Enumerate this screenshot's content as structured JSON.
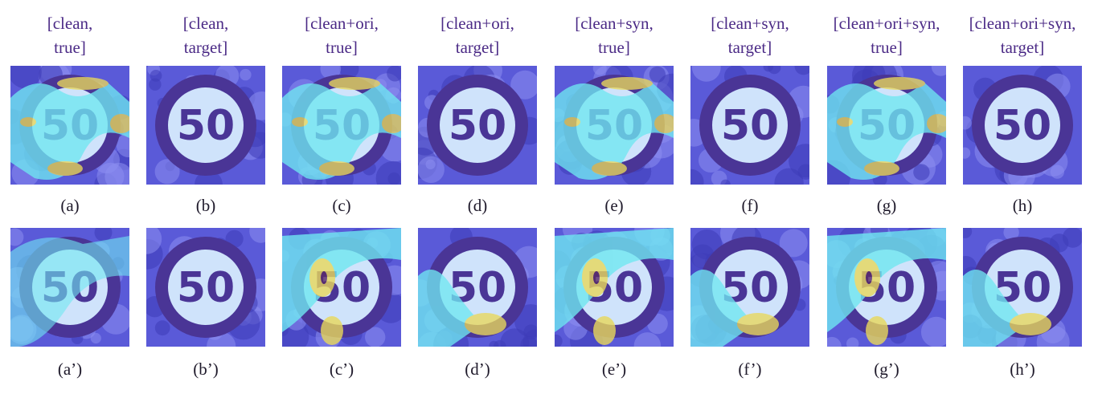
{
  "columns": [
    {
      "header": [
        "[clean,",
        "true]"
      ],
      "caption_top": "(a)",
      "caption_bottom": "(a’)",
      "top_type": "heat_true",
      "bottom_type": "heat_soft"
    },
    {
      "header": [
        "[clean,",
        "target]"
      ],
      "caption_top": "(b)",
      "caption_bottom": "(b’)",
      "top_type": "clean",
      "bottom_type": "clean"
    },
    {
      "header": [
        "[clean+ori,",
        "true]"
      ],
      "caption_top": "(c)",
      "caption_bottom": "(c’)",
      "top_type": "heat_true",
      "bottom_type": "heat_attack"
    },
    {
      "header": [
        "[clean+ori,",
        "target]"
      ],
      "caption_top": "(d)",
      "caption_bottom": "(d’)",
      "top_type": "clean",
      "bottom_type": "heat_target"
    },
    {
      "header": [
        "[clean+syn,",
        "true]"
      ],
      "caption_top": "(e)",
      "caption_bottom": "(e’)",
      "top_type": "heat_true",
      "bottom_type": "heat_attack"
    },
    {
      "header": [
        "[clean+syn,",
        "target]"
      ],
      "caption_top": "(f)",
      "caption_bottom": "(f’)",
      "top_type": "clean",
      "bottom_type": "heat_target"
    },
    {
      "header": [
        "[clean+ori+syn,",
        "true]"
      ],
      "caption_top": "(g)",
      "caption_bottom": "(g’)",
      "top_type": "heat_true",
      "bottom_type": "heat_attack"
    },
    {
      "header": [
        "[clean+ori+syn,",
        "target]"
      ],
      "caption_top": "(h)",
      "caption_bottom": "(h’)",
      "top_type": "clean",
      "bottom_type": "heat_target"
    }
  ],
  "sign_text": "50",
  "colors": {
    "header_text": "#4b2a86",
    "caption_text": "#1f1a2b",
    "sign_ring": "#4a3596",
    "sign_face": "#cfe3fb",
    "background_blue": "#5a5ad8",
    "heat_cyan": "#6fe7f1",
    "heat_yellow": "#e9d85b"
  }
}
